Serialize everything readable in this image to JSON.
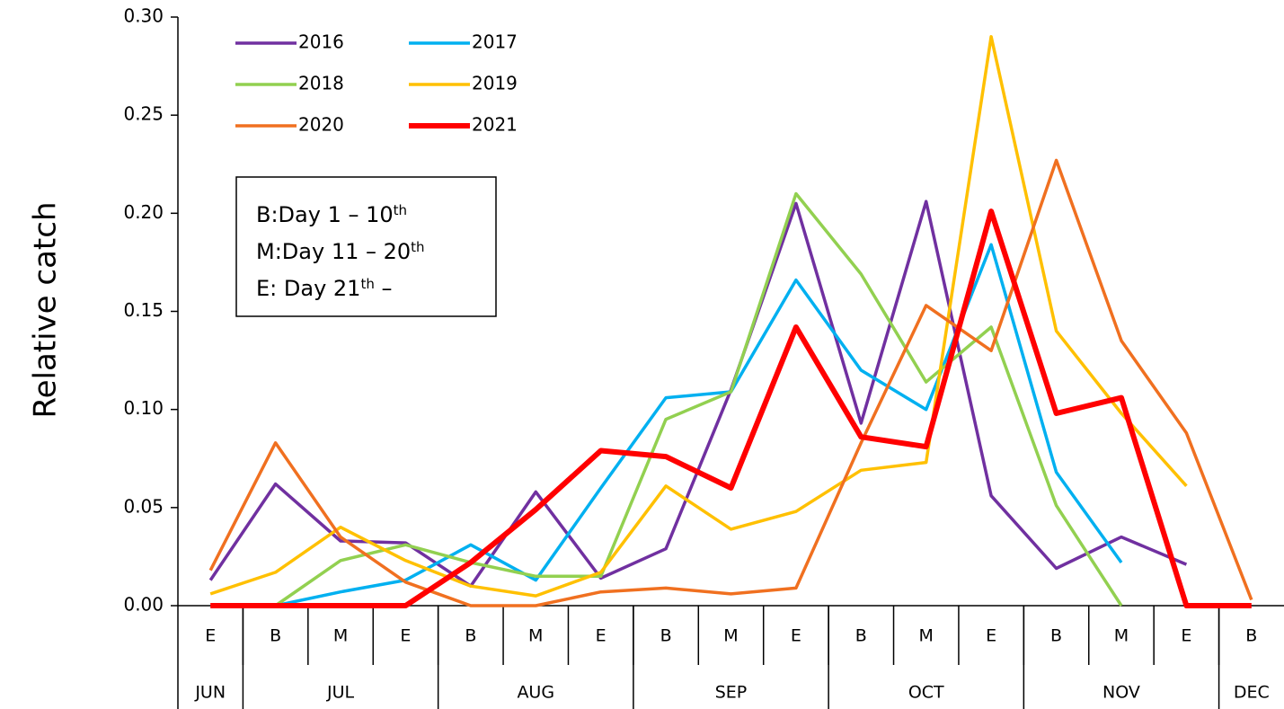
{
  "chart_data": {
    "type": "line",
    "ylabel": "Relative catch",
    "categories": [
      "E",
      "B",
      "M",
      "E",
      "B",
      "M",
      "E",
      "B",
      "M",
      "E",
      "B",
      "M",
      "E",
      "B",
      "M",
      "E",
      "B"
    ],
    "months": [
      {
        "label": "JUN",
        "span": 1
      },
      {
        "label": "JUL",
        "span": 3
      },
      {
        "label": "AUG",
        "span": 3
      },
      {
        "label": "SEP",
        "span": 3
      },
      {
        "label": "OCT",
        "span": 3
      },
      {
        "label": "NOV",
        "span": 3
      },
      {
        "label": "DEC",
        "span": 1
      }
    ],
    "ylim": [
      0,
      0.3
    ],
    "yticks": [
      {
        "value": 0,
        "label": "0.00"
      },
      {
        "value": 0.05,
        "label": "0.05"
      },
      {
        "value": 0.1,
        "label": "0.10"
      },
      {
        "value": 0.15,
        "label": "0.15"
      },
      {
        "value": 0.2,
        "label": "0.20"
      },
      {
        "value": 0.25,
        "label": "0.25"
      },
      {
        "value": 0.3,
        "label": "0.30"
      }
    ],
    "legend": "upper left",
    "series": [
      {
        "name": "2016",
        "color": "#7030a0",
        "values": [
          0.013,
          0.062,
          0.033,
          0.032,
          0.01,
          0.058,
          0.014,
          0.029,
          0.11,
          0.205,
          0.093,
          0.206,
          0.056,
          0.019,
          0.035,
          0.021,
          null
        ]
      },
      {
        "name": "2017",
        "color": "#00b0f0",
        "values": [
          null,
          0.0,
          0.007,
          0.013,
          0.031,
          0.013,
          0.06,
          0.106,
          0.109,
          0.166,
          0.12,
          0.1,
          0.184,
          0.068,
          0.022,
          null,
          null
        ]
      },
      {
        "name": "2018",
        "color": "#92d050",
        "values": [
          null,
          0.0,
          0.023,
          0.031,
          0.022,
          0.015,
          0.015,
          0.095,
          0.109,
          0.21,
          0.169,
          0.114,
          0.142,
          0.051,
          0.0,
          null,
          null
        ]
      },
      {
        "name": "2019",
        "color": "#ffc000",
        "values": [
          0.006,
          0.017,
          0.04,
          0.023,
          0.01,
          0.005,
          0.017,
          0.061,
          0.039,
          0.048,
          0.069,
          0.073,
          0.29,
          0.14,
          0.098,
          0.061,
          null
        ]
      },
      {
        "name": "2020",
        "color": "#f07020",
        "values": [
          0.018,
          0.083,
          0.035,
          0.012,
          0.0,
          0.0,
          0.007,
          0.009,
          0.006,
          0.009,
          0.083,
          0.153,
          0.13,
          0.227,
          0.135,
          0.088,
          0.003
        ]
      },
      {
        "name": "2021",
        "color": "#ff0000",
        "bold": true,
        "values": [
          0.0,
          0.0,
          0.0,
          0.0,
          0.022,
          0.049,
          0.079,
          0.076,
          0.06,
          0.142,
          0.086,
          0.081,
          0.201,
          0.098,
          0.106,
          0.0,
          0.0
        ]
      }
    ],
    "annotation": [
      [
        {
          "text": "B:Day 1 – 10"
        },
        {
          "text": "th",
          "sup": true
        }
      ],
      [
        {
          "text": "M:Day 11 – 20"
        },
        {
          "text": "th",
          "sup": true
        }
      ],
      [
        {
          "text": "E: Day 21"
        },
        {
          "text": "th",
          "sup": true
        },
        {
          "text": " –"
        }
      ]
    ]
  }
}
